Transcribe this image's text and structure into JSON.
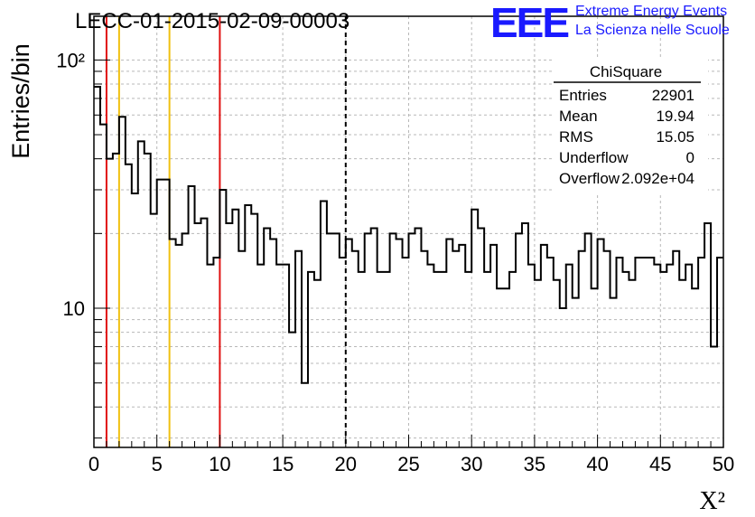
{
  "header": {
    "run_title": "LECC-01-2015-02-09-00003",
    "logo_mark": "EEE",
    "logo_line1": "Extreme Energy Events",
    "logo_line2": "La Scienza nelle Scuole"
  },
  "stats_box": {
    "title": "ChiSquare",
    "rows": [
      {
        "label": "Entries",
        "value": "22901"
      },
      {
        "label": "Mean",
        "value": "19.94"
      },
      {
        "label": "RMS",
        "value": "15.05"
      },
      {
        "label": "Underflow",
        "value": "0"
      },
      {
        "label": "Overflow",
        "value": "2.092e+04"
      }
    ]
  },
  "colors": {
    "red": "#e01010",
    "yellow": "#f0c010",
    "grid": "#b8b8b8",
    "hist": "#000000"
  },
  "chart_data": {
    "type": "histogram",
    "xlabel": "X²",
    "ylabel": "Entries/bin",
    "xlim": [
      0,
      50
    ],
    "ylim": [
      2.75,
      150
    ],
    "yscale": "log",
    "grid": true,
    "x_ticks": [
      0,
      5,
      10,
      15,
      20,
      25,
      30,
      35,
      40,
      45,
      50
    ],
    "y_tick_labels": [
      {
        "value": 10,
        "label": "10"
      },
      {
        "value": 100,
        "label": "10²"
      }
    ],
    "bin_width": 0.5,
    "values": [
      78,
      55,
      40,
      42,
      59,
      38,
      29,
      47,
      42,
      24,
      33,
      33,
      19,
      18,
      20,
      31,
      22,
      23,
      15,
      16,
      30,
      22,
      25,
      17,
      26,
      24,
      15,
      21,
      19,
      15,
      15,
      8,
      17,
      5,
      14,
      13,
      27,
      20,
      20,
      16,
      19,
      17,
      14,
      20,
      21,
      14,
      14,
      20,
      19,
      16,
      20,
      21,
      17,
      15,
      14,
      14,
      19,
      17,
      18,
      14,
      25,
      21,
      14,
      18,
      12,
      12,
      14,
      20,
      22,
      15,
      13,
      18,
      16,
      13,
      10,
      15,
      11,
      17,
      20,
      12,
      19,
      17,
      11,
      16,
      14,
      13,
      16,
      16,
      16,
      15,
      14,
      15,
      17,
      13,
      15,
      12,
      16,
      22,
      7,
      16
    ],
    "reference_lines": [
      {
        "x": 1,
        "style": "red"
      },
      {
        "x": 2,
        "style": "yellow"
      },
      {
        "x": 6,
        "style": "yellow"
      },
      {
        "x": 10,
        "style": "red"
      },
      {
        "x": 20,
        "style": "black-dashed"
      }
    ]
  }
}
